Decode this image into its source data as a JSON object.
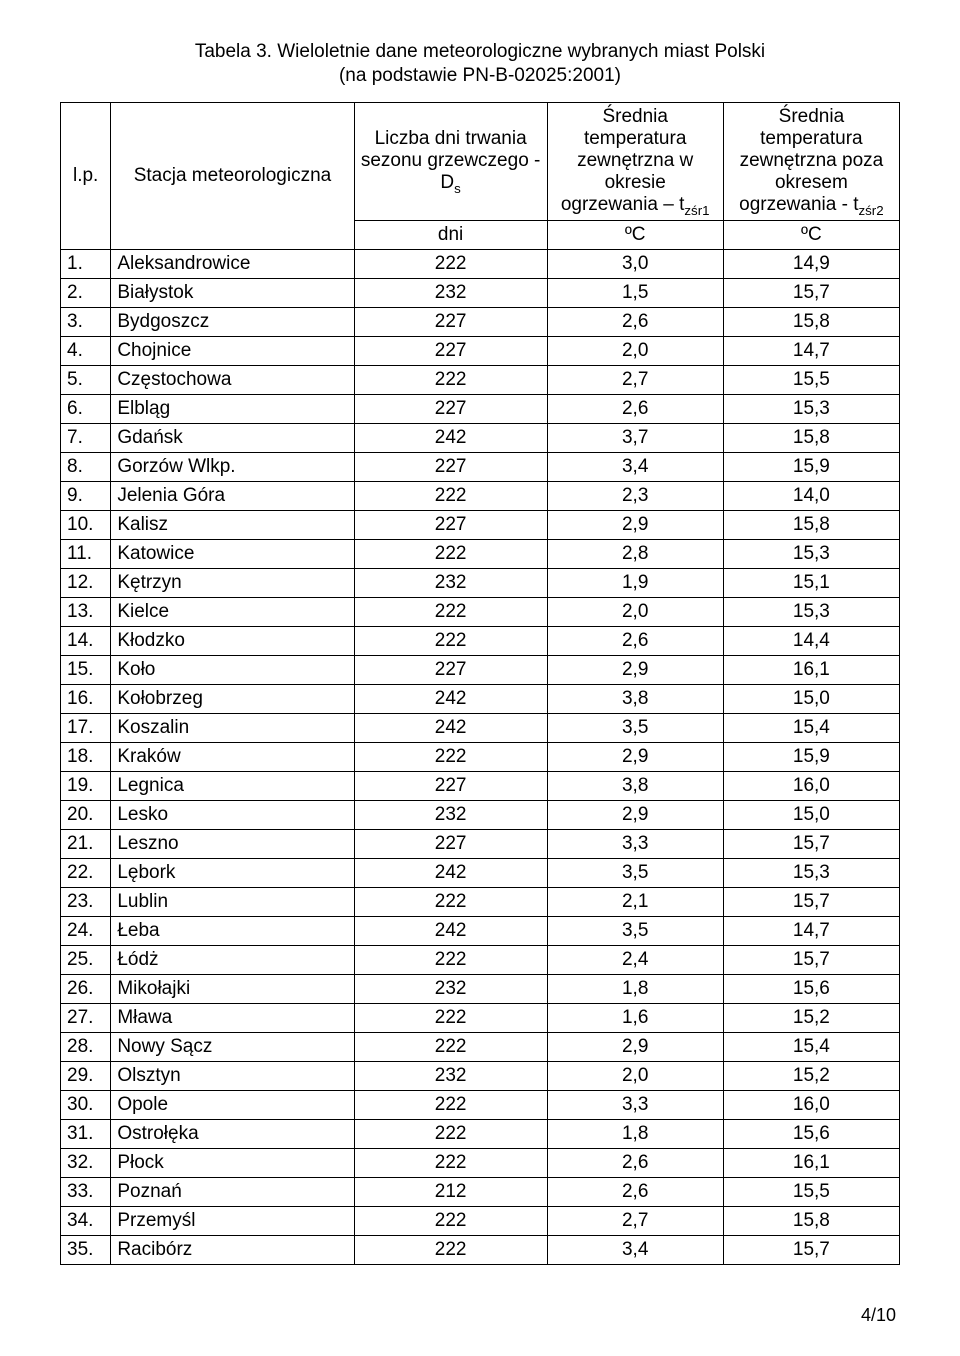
{
  "title_line1": "Tabela 3. Wieloletnie dane meteorologiczne wybranych miast Polski",
  "title_line2": "(na podstawie PN-B-02025:2001)",
  "header": {
    "lp": "l.p.",
    "station": "Stacja meteorologiczna",
    "days_html": "Liczba dni trwania sezonu grzewczego - D<sub>s</sub>",
    "t1_html": "Średnia temperatura zewnętrzna w okresie ogrzewania – t<sub>zśr1</sub>",
    "t2_html": "Średnia temperatura zewnętrzna poza okresem ogrzewania - t<sub>zśr2</sub>",
    "unit_days": "dni",
    "unit_c": "ºC"
  },
  "rows": [
    {
      "n": "1.",
      "city": "Aleksandrowice",
      "d": "222",
      "t1": "3,0",
      "t2": "14,9"
    },
    {
      "n": "2.",
      "city": "Białystok",
      "d": "232",
      "t1": "1,5",
      "t2": "15,7"
    },
    {
      "n": "3.",
      "city": "Bydgoszcz",
      "d": "227",
      "t1": "2,6",
      "t2": "15,8"
    },
    {
      "n": "4.",
      "city": "Chojnice",
      "d": "227",
      "t1": "2,0",
      "t2": "14,7"
    },
    {
      "n": "5.",
      "city": "Częstochowa",
      "d": "222",
      "t1": "2,7",
      "t2": "15,5"
    },
    {
      "n": "6.",
      "city": "Elbląg",
      "d": "227",
      "t1": "2,6",
      "t2": "15,3"
    },
    {
      "n": "7.",
      "city": "Gdańsk",
      "d": "242",
      "t1": "3,7",
      "t2": "15,8"
    },
    {
      "n": "8.",
      "city": "Gorzów Wlkp.",
      "d": "227",
      "t1": "3,4",
      "t2": "15,9"
    },
    {
      "n": "9.",
      "city": "Jelenia Góra",
      "d": "222",
      "t1": "2,3",
      "t2": "14,0"
    },
    {
      "n": "10.",
      "city": "Kalisz",
      "d": "227",
      "t1": "2,9",
      "t2": "15,8"
    },
    {
      "n": "11.",
      "city": "Katowice",
      "d": "222",
      "t1": "2,8",
      "t2": "15,3"
    },
    {
      "n": "12.",
      "city": "Kętrzyn",
      "d": "232",
      "t1": "1,9",
      "t2": "15,1"
    },
    {
      "n": "13.",
      "city": "Kielce",
      "d": "222",
      "t1": "2,0",
      "t2": "15,3"
    },
    {
      "n": "14.",
      "city": "Kłodzko",
      "d": "222",
      "t1": "2,6",
      "t2": "14,4"
    },
    {
      "n": "15.",
      "city": "Koło",
      "d": "227",
      "t1": "2,9",
      "t2": "16,1"
    },
    {
      "n": "16.",
      "city": "Kołobrzeg",
      "d": "242",
      "t1": "3,8",
      "t2": "15,0"
    },
    {
      "n": "17.",
      "city": "Koszalin",
      "d": "242",
      "t1": "3,5",
      "t2": "15,4"
    },
    {
      "n": "18.",
      "city": "Kraków",
      "d": "222",
      "t1": "2,9",
      "t2": "15,9"
    },
    {
      "n": "19.",
      "city": "Legnica",
      "d": "227",
      "t1": "3,8",
      "t2": "16,0"
    },
    {
      "n": "20.",
      "city": "Lesko",
      "d": "232",
      "t1": "2,9",
      "t2": "15,0"
    },
    {
      "n": "21.",
      "city": "Leszno",
      "d": "227",
      "t1": "3,3",
      "t2": "15,7"
    },
    {
      "n": "22.",
      "city": "Lębork",
      "d": "242",
      "t1": "3,5",
      "t2": "15,3"
    },
    {
      "n": "23.",
      "city": "Lublin",
      "d": "222",
      "t1": "2,1",
      "t2": "15,7"
    },
    {
      "n": "24.",
      "city": "Łeba",
      "d": "242",
      "t1": "3,5",
      "t2": "14,7"
    },
    {
      "n": "25.",
      "city": "Łódż",
      "d": "222",
      "t1": "2,4",
      "t2": "15,7"
    },
    {
      "n": "26.",
      "city": "Mikołajki",
      "d": "232",
      "t1": "1,8",
      "t2": "15,6"
    },
    {
      "n": "27.",
      "city": "Mława",
      "d": "222",
      "t1": "1,6",
      "t2": "15,2"
    },
    {
      "n": "28.",
      "city": "Nowy Sącz",
      "d": "222",
      "t1": "2,9",
      "t2": "15,4"
    },
    {
      "n": "29.",
      "city": "Olsztyn",
      "d": "232",
      "t1": "2,0",
      "t2": "15,2"
    },
    {
      "n": "30.",
      "city": "Opole",
      "d": "222",
      "t1": "3,3",
      "t2": "16,0"
    },
    {
      "n": "31.",
      "city": "Ostrołęka",
      "d": "222",
      "t1": "1,8",
      "t2": "15,6"
    },
    {
      "n": "32.",
      "city": "Płock",
      "d": "222",
      "t1": "2,6",
      "t2": "16,1"
    },
    {
      "n": "33.",
      "city": "Poznań",
      "d": "212",
      "t1": "2,6",
      "t2": "15,5"
    },
    {
      "n": "34.",
      "city": "Przemyśl",
      "d": "222",
      "t1": "2,7",
      "t2": "15,8"
    },
    {
      "n": "35.",
      "city": "Racibórz",
      "d": "222",
      "t1": "3,4",
      "t2": "15,7"
    }
  ],
  "pagenum": "4/10"
}
